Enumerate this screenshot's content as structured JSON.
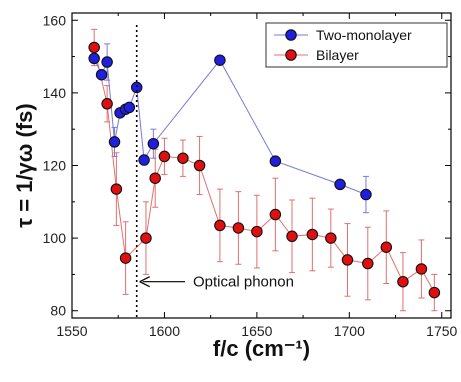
{
  "chart_data": {
    "type": "scatter",
    "xlabel": "f/c (cm⁻¹)",
    "ylabel": "τ = 1/γω (fs)",
    "xlim": [
      1550,
      1755
    ],
    "ylim": [
      78,
      162
    ],
    "xticks": [
      1550,
      1600,
      1650,
      1700,
      1750
    ],
    "yticks": [
      80,
      100,
      120,
      140,
      160
    ],
    "grid": false,
    "legend_position": "top-right",
    "series": [
      {
        "name": "Two-monolayer",
        "color": "#1f1fe0",
        "line_color": "#7a7ad8",
        "points": [
          {
            "x": 1562,
            "y": 149.5,
            "err": 0
          },
          {
            "x": 1566,
            "y": 145,
            "err": 0
          },
          {
            "x": 1569,
            "y": 148.5,
            "err": 5
          },
          {
            "x": 1573,
            "y": 126.5,
            "err": 4
          },
          {
            "x": 1576,
            "y": 134.5,
            "err": 0
          },
          {
            "x": 1579,
            "y": 135.5,
            "err": 0
          },
          {
            "x": 1581,
            "y": 136,
            "err": 0
          },
          {
            "x": 1585,
            "y": 141.5,
            "err": 0
          },
          {
            "x": 1589,
            "y": 121.5,
            "err": 0
          },
          {
            "x": 1594,
            "y": 126,
            "err": 4
          },
          {
            "x": 1630,
            "y": 149,
            "err": 0
          },
          {
            "x": 1660,
            "y": 121.2,
            "err": 0
          },
          {
            "x": 1695,
            "y": 114.8,
            "err": 0
          },
          {
            "x": 1709,
            "y": 112,
            "err": 5
          }
        ]
      },
      {
        "name": "Bilayer",
        "color": "#e01010",
        "line_color": "#e07070",
        "points": [
          {
            "x": 1562,
            "y": 152.5,
            "err": 5
          },
          {
            "x": 1569,
            "y": 137,
            "err": 5
          },
          {
            "x": 1574,
            "y": 113.5,
            "err": 10
          },
          {
            "x": 1579,
            "y": 94.5,
            "err": 10
          },
          {
            "x": 1590,
            "y": 100,
            "err": 10
          },
          {
            "x": 1595,
            "y": 116.5,
            "err": 8
          },
          {
            "x": 1600,
            "y": 122.5,
            "err": 5
          },
          {
            "x": 1610,
            "y": 122,
            "err": 5
          },
          {
            "x": 1619,
            "y": 120,
            "err": 8
          },
          {
            "x": 1630,
            "y": 103.5,
            "err": 10
          },
          {
            "x": 1640,
            "y": 102.8,
            "err": 10
          },
          {
            "x": 1650,
            "y": 101.8,
            "err": 10
          },
          {
            "x": 1660,
            "y": 106.5,
            "err": 10
          },
          {
            "x": 1669,
            "y": 100.5,
            "err": 10
          },
          {
            "x": 1680,
            "y": 101,
            "err": 10
          },
          {
            "x": 1690,
            "y": 100,
            "err": 8
          },
          {
            "x": 1699,
            "y": 94,
            "err": 10
          },
          {
            "x": 1710,
            "y": 93,
            "err": 10
          },
          {
            "x": 1720,
            "y": 97.5,
            "err": 10
          },
          {
            "x": 1729,
            "y": 88,
            "err": 8
          },
          {
            "x": 1739,
            "y": 91.5,
            "err": 8
          },
          {
            "x": 1746,
            "y": 85,
            "err": 5
          }
        ]
      }
    ],
    "annotations": [
      {
        "type": "vline",
        "x": 1585,
        "style": "dotted",
        "color": "#000000"
      },
      {
        "type": "arrow-label",
        "text": "Optical phonon",
        "y": 88,
        "points_to_x": 1585
      }
    ]
  }
}
